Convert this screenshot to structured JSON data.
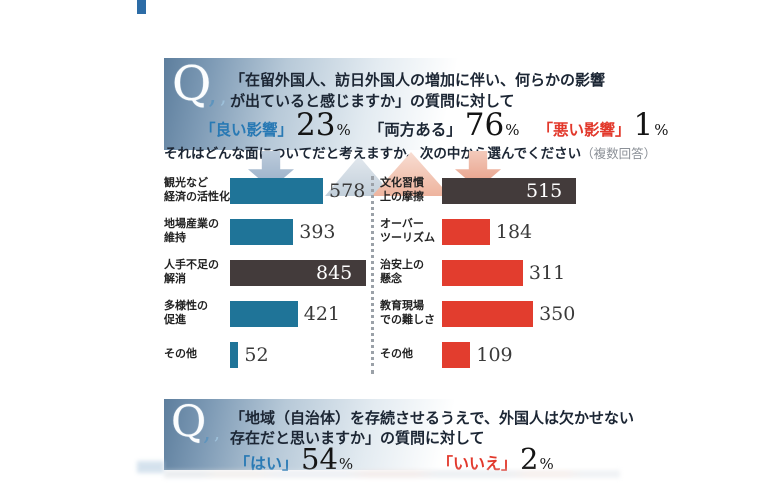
{
  "colors": {
    "label_blue": "#2879b4",
    "label_red": "#e2382b",
    "text_dark": "#1c2634",
    "bar_blue": "#1f7498",
    "bar_red": "#e23d2e",
    "bar_dark": "#433b3b",
    "note_gray": "#8b9097"
  },
  "q1": {
    "icon": "Q",
    "line1": "「在留外国人、訪日外国人の増加に伴い、何らかの影響",
    "line2": "が出ていると感じますか」の質問に対して",
    "answers": [
      {
        "label": "「良い影響」",
        "value": "23",
        "unit": "%"
      },
      {
        "label": "「両方ある」",
        "value": "76",
        "unit": "%"
      },
      {
        "label": "「悪い影響」",
        "value": "1",
        "unit": "%"
      }
    ],
    "instruction": "それはどんな面についてだと考えますか。次の中から選んでください",
    "note": "（複数回答）"
  },
  "chart_data": [
    {
      "type": "bar",
      "orientation": "horizontal",
      "position": "left",
      "title": "",
      "categories": [
        "観光など経済の活性化",
        "地場産業の維持",
        "人手不足の解消",
        "多様性の促進",
        "その他"
      ],
      "categories_lines": [
        [
          "観光など",
          "経済の活性化"
        ],
        [
          "地場産業の",
          "維持"
        ],
        [
          "人手不足の",
          "解消"
        ],
        [
          "多様性の",
          "促進"
        ],
        [
          "その他",
          ""
        ]
      ],
      "values": [
        578,
        393,
        845,
        421,
        52
      ],
      "xlim": [
        0,
        845
      ],
      "bar_color": "#1f7498",
      "highlight_index": 2,
      "highlight_color": "#433b3b",
      "value_labels": true,
      "grid": false,
      "legend": false
    },
    {
      "type": "bar",
      "orientation": "horizontal",
      "position": "right",
      "title": "",
      "categories": [
        "文化習慣上の摩擦",
        "オーバーツーリズム",
        "治安上の懸念",
        "教育現場での難しさ",
        "その他"
      ],
      "categories_lines": [
        [
          "文化習慣",
          "上の摩擦"
        ],
        [
          "オーバー",
          "ツーリズム"
        ],
        [
          "治安上の",
          "懸念"
        ],
        [
          "教育現場",
          "での難しさ"
        ],
        [
          "その他",
          ""
        ]
      ],
      "values": [
        515,
        184,
        311,
        350,
        109
      ],
      "xlim": [
        0,
        515
      ],
      "bar_color": "#e23d2e",
      "highlight_index": 0,
      "highlight_color": "#433b3b",
      "value_labels": true,
      "grid": false,
      "legend": false
    }
  ],
  "q2": {
    "icon": "Q",
    "line1": "「地域（自治体）を存続させるうえで、外国人は欠かせない",
    "line2": "存在だと思いますか」の質問に対して",
    "answers": [
      {
        "label": "「はい」",
        "value": "54",
        "unit": "%"
      },
      {
        "label": "「いいえ」",
        "value": "2",
        "unit": "%"
      }
    ]
  }
}
